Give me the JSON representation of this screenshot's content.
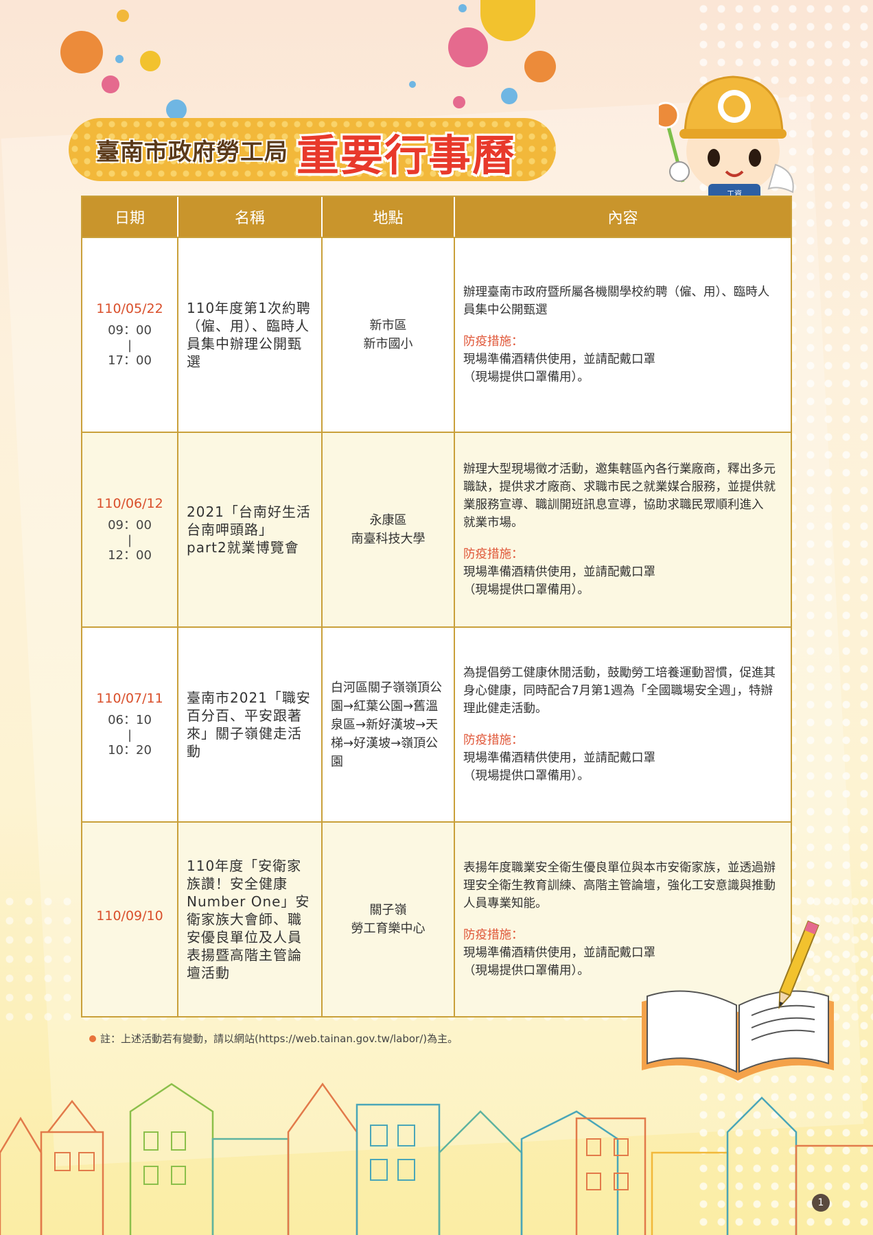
{
  "title": {
    "org": "臺南市政府勞工局",
    "main": "重要行事曆"
  },
  "mascot": {
    "badge": "工資"
  },
  "table": {
    "headers": [
      "日期",
      "名稱",
      "地點",
      "內容"
    ],
    "rows": [
      {
        "date": "110/05/22",
        "time_start": "09：00",
        "time_sep": "|",
        "time_end": "17：00",
        "name": "110年度第1次約聘（僱、用）、臨時人員集中辦理公開甄選",
        "location": [
          "新市區",
          "新市國小"
        ],
        "description": "辦理臺南市政府暨所屬各機關學校約聘（僱、用）、臨時人員集中公開甄選",
        "prevention_label": "防疫措施：",
        "prevention_text": [
          "現場準備酒精供使用，並請配戴口罩",
          "（現場提供口罩備用）。"
        ]
      },
      {
        "date": "110/06/12",
        "time_start": "09：00",
        "time_sep": "|",
        "time_end": "12：00",
        "name": "2021「台南好生活台南呷頭路」part2就業博覽會",
        "location": [
          "永康區",
          "南臺科技大學"
        ],
        "description": "辦理大型現場徵才活動，邀集轄區內各行業廠商，釋出多元職缺，提供求才廠商、求職市民之就業媒合服務，並提供就業服務宣導、職訓開班訊息宣導，協助求職民眾順利進入 就業市場。",
        "prevention_label": "防疫措施：",
        "prevention_text": [
          "現場準備酒精供使用，並請配戴口罩",
          "（現場提供口罩備用）。"
        ]
      },
      {
        "date": "110/07/11",
        "time_start": "06：10",
        "time_sep": "|",
        "time_end": "10：20",
        "name": "臺南市2021「職安百分百、平安跟著來」關子嶺健走活動",
        "location": [
          "白河區關子嶺嶺頂公園→紅葉公園→舊溫泉區→新好漢坡→天梯→好漢坡→嶺頂公園"
        ],
        "description": "為提倡勞工健康休閒活動，鼓勵勞工培養運動習慣，促進其身心健康，同時配合7月第1週為「全國職場安全週」，特辦理此健走活動。",
        "prevention_label": "防疫措施：",
        "prevention_text": [
          "現場準備酒精供使用，並請配戴口罩",
          "（現場提供口罩備用）。"
        ]
      },
      {
        "date": "110/09/10",
        "name": "110年度「安衛家族讚！安全健康Number One」安衛家族大會師、職安優良單位及人員表揚暨高階主管論壇活動",
        "location": [
          "關子嶺",
          "勞工育樂中心"
        ],
        "description": "表揚年度職業安全衛生優良單位與本市安衛家族，並透過辦理安全衛生教育訓練、高階主管論壇，強化工安意識與推動人員專業知能。",
        "prevention_label": "防疫措施：",
        "prevention_text": [
          "現場準備酒精供使用，並請配戴口罩",
          "（現場提供口罩備用）。"
        ]
      }
    ]
  },
  "note": "註：上述活動若有變動，請以網站(https://web.tainan.gov.tw/labor/)為主。",
  "page_number": "1"
}
